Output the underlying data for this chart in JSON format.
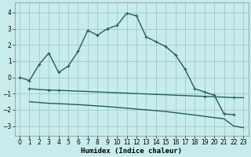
{
  "xlabel": "Humidex (Indice chaleur)",
  "bg_color": "#c8ecec",
  "grid_color": "#a0c8c8",
  "line_color": "#1a6060",
  "xlim": [
    -0.5,
    23.5
  ],
  "ylim": [
    -3.6,
    4.6
  ],
  "yticks": [
    -3,
    -2,
    -1,
    0,
    1,
    2,
    3,
    4
  ],
  "xticks": [
    0,
    1,
    2,
    3,
    4,
    5,
    6,
    7,
    8,
    9,
    10,
    11,
    12,
    13,
    14,
    15,
    16,
    17,
    18,
    19,
    20,
    21,
    22,
    23
  ],
  "series1_x": [
    0,
    1,
    2,
    3,
    4,
    5,
    6,
    7,
    8,
    9,
    10,
    11,
    12,
    13,
    14,
    15,
    16,
    17,
    18,
    19,
    20,
    21,
    22
  ],
  "series1_y": [
    0.0,
    -0.2,
    0.8,
    1.5,
    0.3,
    0.7,
    1.6,
    2.9,
    2.6,
    3.0,
    3.2,
    3.95,
    3.8,
    2.5,
    2.2,
    1.9,
    1.4,
    0.5,
    -0.7,
    -0.9,
    -1.1,
    -2.25,
    -2.3
  ],
  "series2_x": [
    1,
    2,
    3,
    4,
    5,
    6,
    7,
    8,
    9,
    10,
    11,
    12,
    13,
    14,
    15,
    16,
    17,
    18,
    19,
    20,
    21,
    22,
    23
  ],
  "series2_y": [
    -0.7,
    -0.75,
    -0.78,
    -0.8,
    -0.82,
    -0.85,
    -0.87,
    -0.9,
    -0.92,
    -0.95,
    -0.97,
    -1.0,
    -1.02,
    -1.05,
    -1.07,
    -1.1,
    -1.12,
    -1.15,
    -1.17,
    -1.2,
    -1.22,
    -1.25,
    -1.25
  ],
  "series2_marked_x": [
    1,
    3,
    4,
    19,
    22
  ],
  "series2_marked_y": [
    -0.7,
    -0.78,
    -0.8,
    -1.17,
    -1.25
  ],
  "series3_x": [
    1,
    2,
    3,
    4,
    5,
    6,
    7,
    8,
    9,
    10,
    11,
    12,
    13,
    14,
    15,
    16,
    17,
    18,
    19,
    20,
    21,
    22,
    23
  ],
  "series3_y": [
    -1.5,
    -1.55,
    -1.6,
    -1.62,
    -1.65,
    -1.68,
    -1.72,
    -1.76,
    -1.8,
    -1.85,
    -1.9,
    -1.95,
    -2.0,
    -2.05,
    -2.1,
    -2.18,
    -2.25,
    -2.32,
    -2.4,
    -2.48,
    -2.55,
    -3.0,
    -3.1
  ]
}
